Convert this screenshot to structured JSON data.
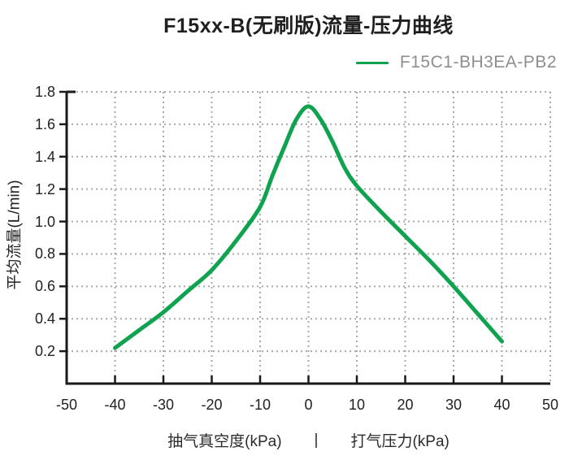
{
  "title": "F15xx-B(无刷版)流量-压力曲线",
  "legend": {
    "label": "F15C1-BH3EA-PB2"
  },
  "y_axis": {
    "label": "平均流量(L/min)",
    "tick_labels": [
      "1.8",
      "1.6",
      "1.4",
      "1.2",
      "1.0",
      "0.8",
      "0.6",
      "0.4",
      "0.2"
    ]
  },
  "x_axis": {
    "tick_labels": [
      "-50",
      "-40",
      "-30",
      "-20",
      "-10",
      "0",
      "10",
      "20",
      "30",
      "40",
      "50"
    ],
    "label_left": "抽气真空度(kPa)",
    "separator": "|",
    "label_right": "打气压力(kPa)"
  },
  "colors": {
    "curve": "#0fa24f",
    "grid": "#a9a9a9",
    "axis": "#1a1a1a",
    "title_text": "#1f1f1f",
    "tick_text": "#222222",
    "legend_text": "#8e8e8e",
    "bottom_label_text": "#2b2b2b"
  },
  "chart_data": {
    "type": "line",
    "title": "F15xx-B(无刷版)流量-压力曲线",
    "xlabel": "抽气真空度(kPa) | 打气压力(kPa)",
    "ylabel": "平均流量(L/min)",
    "xlim": [
      -50,
      50
    ],
    "ylim": [
      0,
      1.8
    ],
    "x_ticks": [
      -50,
      -40,
      -30,
      -20,
      -10,
      0,
      10,
      20,
      30,
      40,
      50
    ],
    "y_ticks": [
      0.2,
      0.4,
      0.6,
      0.8,
      1.0,
      1.2,
      1.4,
      1.6,
      1.8
    ],
    "grid": "dotted",
    "legend_position": "top-right",
    "series": [
      {
        "name": "F15C1-BH3EA-PB2",
        "color": "#0fa24f",
        "x": [
          -40,
          -35,
          -30,
          -25,
          -20,
          -15,
          -10,
          -7.5,
          -5,
          -2.5,
          0,
          2.5,
          5,
          7.5,
          10,
          15,
          20,
          25,
          30,
          35,
          40
        ],
        "y": [
          0.22,
          0.33,
          0.44,
          0.57,
          0.7,
          0.88,
          1.09,
          1.28,
          1.46,
          1.63,
          1.71,
          1.63,
          1.49,
          1.33,
          1.22,
          1.06,
          0.91,
          0.76,
          0.6,
          0.43,
          0.26
        ]
      }
    ]
  }
}
